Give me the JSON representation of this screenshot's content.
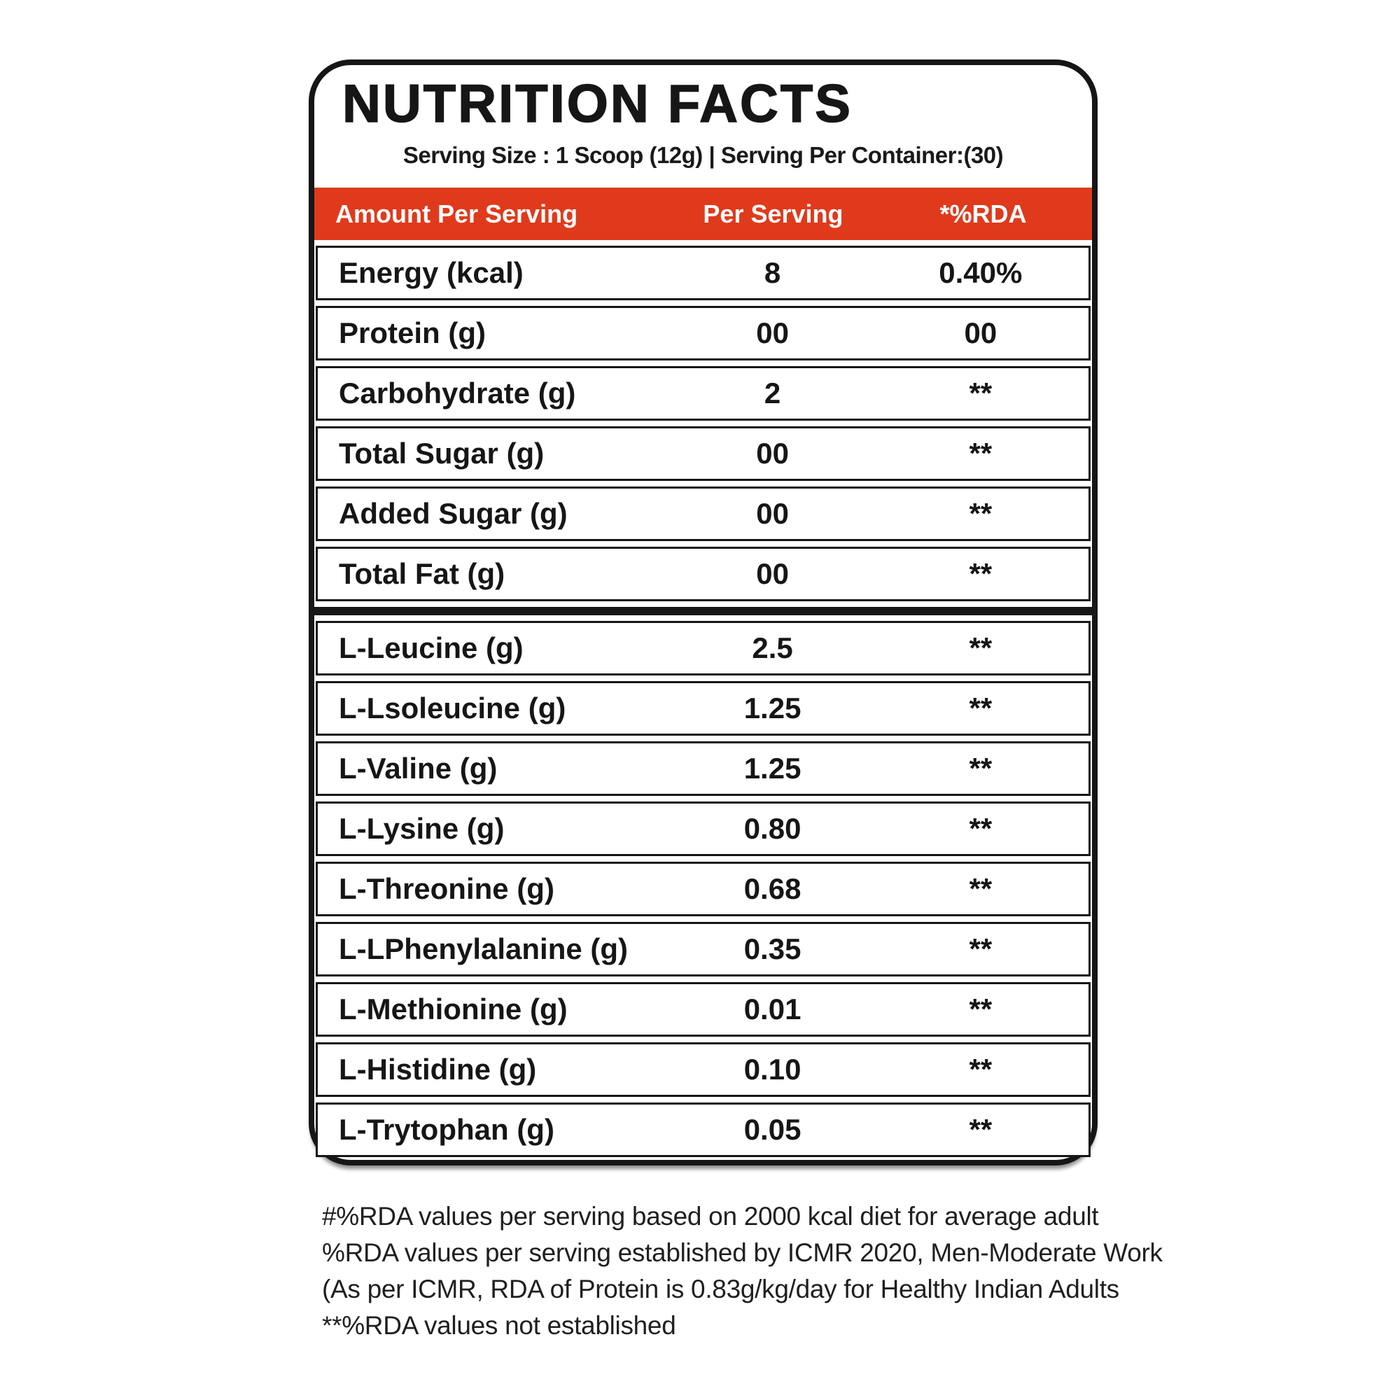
{
  "label": {
    "title": "NUTRITION FACTS",
    "serving_line": "Serving Size : 1 Scoop  (12g) | Serving Per Container:(30)",
    "columns": [
      "Amount Per Serving",
      "Per Serving",
      "*%RDA"
    ],
    "macro_rows": [
      {
        "name": "Energy (kcal)",
        "per_serving": "8",
        "rda": "0.40%"
      },
      {
        "name": "Protein (g)",
        "per_serving": "00",
        "rda": "00"
      },
      {
        "name": "Carbohydrate (g)",
        "per_serving": "2",
        "rda": "**"
      },
      {
        "name": "Total Sugar (g)",
        "per_serving": "00",
        "rda": "**"
      },
      {
        "name": "Added Sugar (g)",
        "per_serving": "00",
        "rda": "**"
      },
      {
        "name": "Total Fat (g)",
        "per_serving": "00",
        "rda": "**"
      }
    ],
    "amino_rows": [
      {
        "name": "L-Leucine (g)",
        "per_serving": "2.5",
        "rda": "**"
      },
      {
        "name": "L-Lsoleucine (g)",
        "per_serving": "1.25",
        "rda": "**"
      },
      {
        "name": "L-Valine (g)",
        "per_serving": "1.25",
        "rda": "**"
      },
      {
        "name": "L-Lysine (g)",
        "per_serving": "0.80",
        "rda": "**"
      },
      {
        "name": "L-Threonine (g)",
        "per_serving": "0.68",
        "rda": "**"
      },
      {
        "name": "L-LPhenylalanine (g)",
        "per_serving": "0.35",
        "rda": "**"
      },
      {
        "name": "L-Methionine (g)",
        "per_serving": "0.01",
        "rda": "**"
      },
      {
        "name": "L-Histidine (g)",
        "per_serving": "0.10",
        "rda": "**"
      },
      {
        "name": "L-Trytophan (g)",
        "per_serving": "0.05",
        "rda": "**"
      }
    ],
    "footnotes": [
      "#%RDA values per serving based on 2000 kcal diet for average adult",
      "%RDA values per serving established by ICMR 2020, Men-Moderate Work",
      "(As per ICMR, RDA of Protein is 0.83g/kg/day for Healthy Indian Adults",
      "**%RDA values not established"
    ],
    "colors": {
      "accent_red": "#e03a1c",
      "border_black": "#161616"
    }
  }
}
